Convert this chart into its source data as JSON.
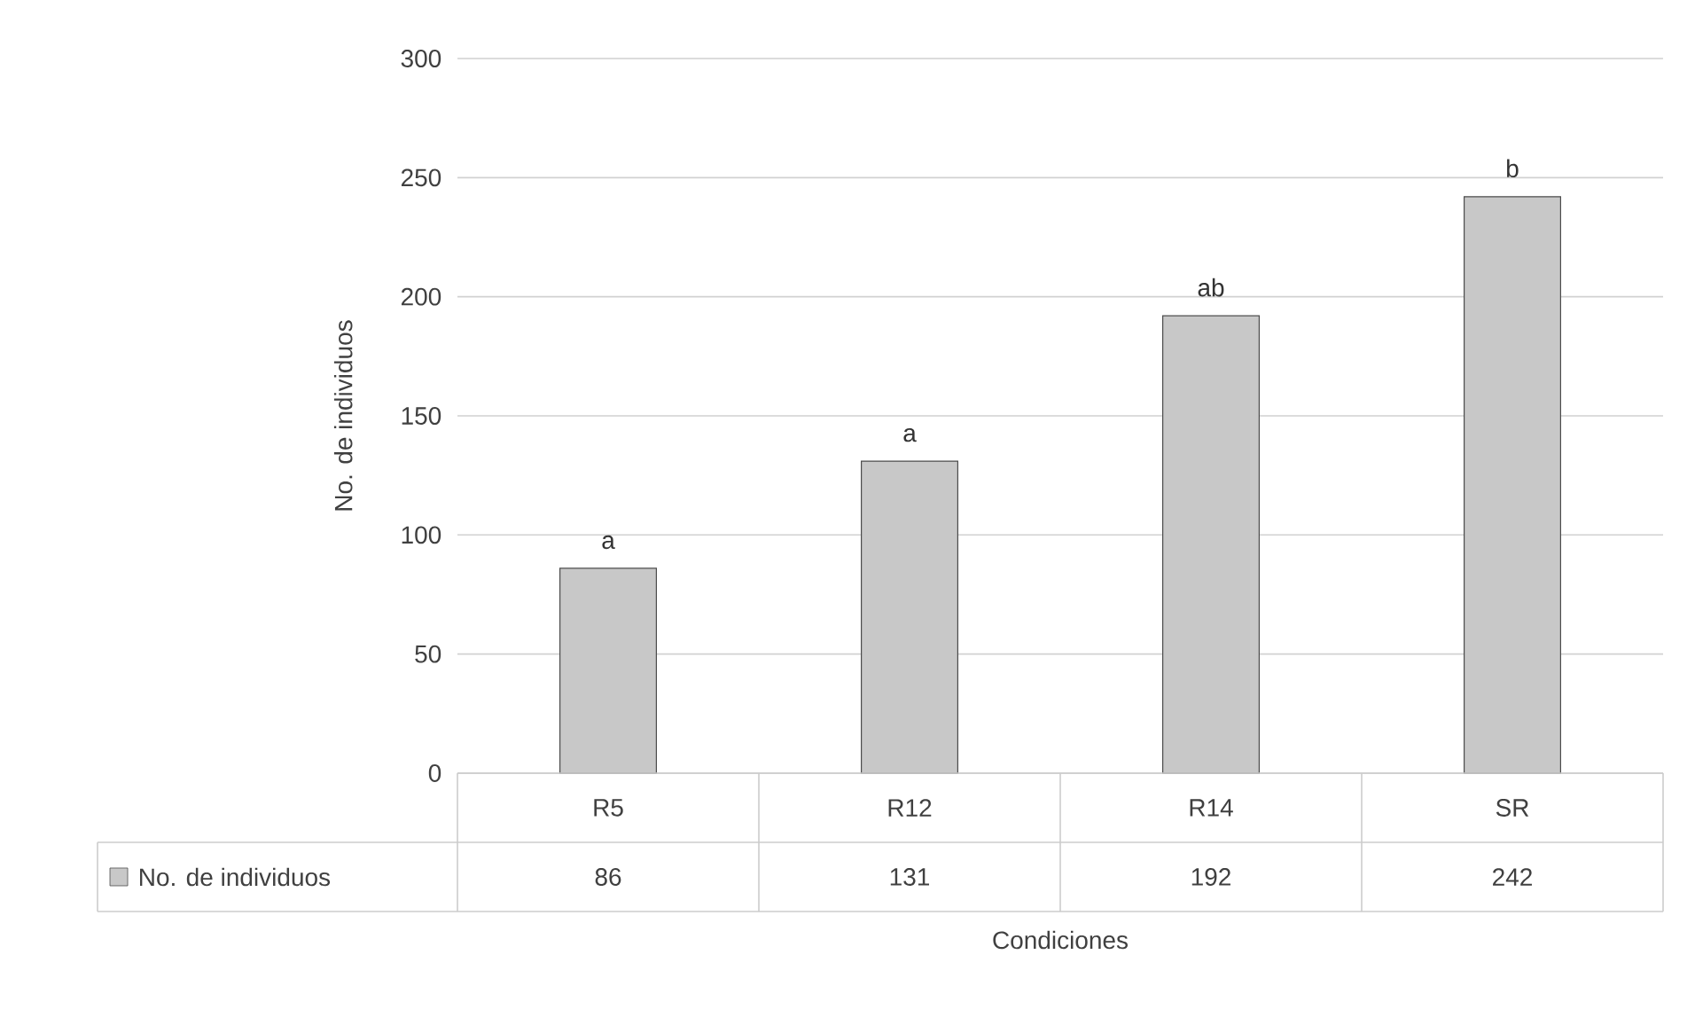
{
  "chart_data": {
    "type": "bar",
    "xlabel": "Condiciones",
    "ylabel": "No. de individuos",
    "categories": [
      "R5",
      "R12",
      "R14",
      "SR"
    ],
    "series": [
      {
        "name": "No. de individuos",
        "color": "#c8c8c8",
        "values": [
          86,
          131,
          192,
          242
        ]
      }
    ],
    "ylim": [
      0,
      300
    ],
    "yticks": [
      0,
      50,
      100,
      150,
      200,
      250,
      300
    ],
    "grid": "y",
    "data_labels": true,
    "annotations": [
      {
        "text": "a",
        "x": "R5",
        "y": 86
      },
      {
        "text": "a",
        "x": "R12",
        "y": 131
      },
      {
        "text": "ab",
        "x": "R14",
        "y": 192
      },
      {
        "text": "b",
        "x": "SR",
        "y": 242
      }
    ]
  }
}
